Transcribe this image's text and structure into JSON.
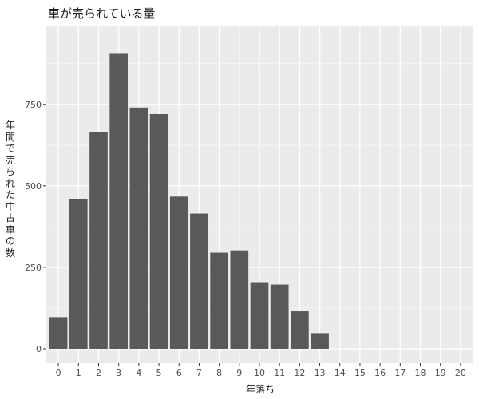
{
  "chart_data": {
    "type": "bar",
    "title": "車が売られている量",
    "xlabel": "年落ち",
    "ylabel": "年間で売られた中古車の数",
    "categories": [
      "0",
      "1",
      "2",
      "3",
      "4",
      "5",
      "6",
      "7",
      "8",
      "9",
      "10",
      "11",
      "12",
      "13",
      "14",
      "15",
      "16",
      "17",
      "18",
      "19",
      "20"
    ],
    "values": [
      97,
      458,
      665,
      905,
      740,
      720,
      467,
      415,
      295,
      302,
      202,
      197,
      115,
      48,
      0,
      0,
      0,
      0,
      0,
      0,
      0
    ],
    "ylim": [
      0,
      960
    ],
    "yticks": [
      0,
      250,
      500,
      750
    ],
    "grid": true,
    "colors": {
      "bar": "#595959",
      "panel": "#ebebeb",
      "grid_major": "#ffffff",
      "text": "#4d4d4d"
    }
  }
}
